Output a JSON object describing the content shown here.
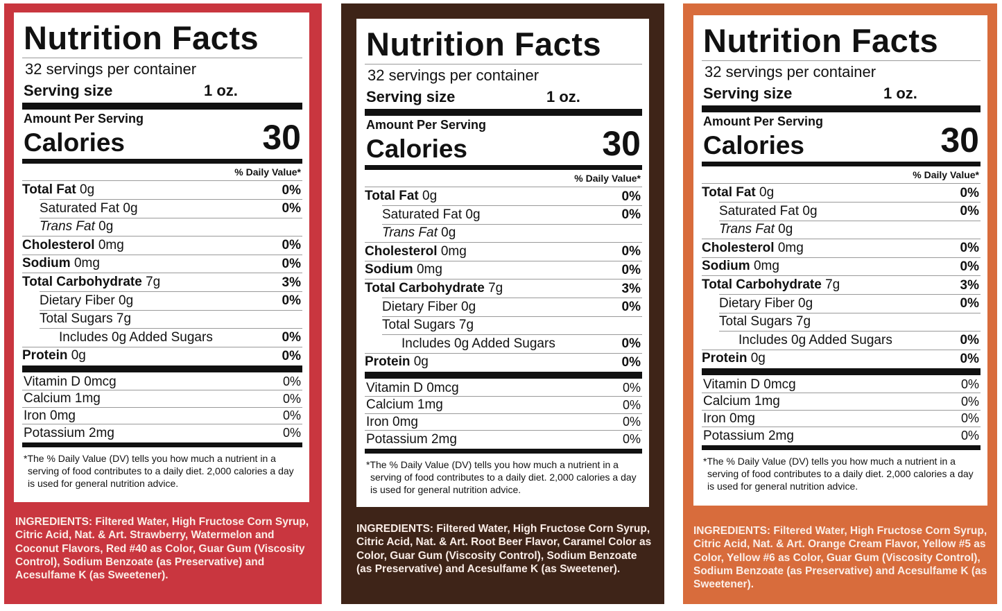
{
  "labels": [
    {
      "title": "Nutrition Facts",
      "servings": "32 servings per container",
      "serving_size_label": "Serving size",
      "serving_size": "1 oz.",
      "amount_per_serving": "Amount Per Serving",
      "calories_label": "Calories",
      "calories": "30",
      "dv_header": "% Daily Value*",
      "nutrients": [
        {
          "name": "Total Fat",
          "amount": "0g",
          "dv": "0%"
        },
        {
          "name": "Saturated Fat",
          "amount": "0g",
          "dv": "0%"
        },
        {
          "name": "Trans Fat",
          "amount": "0g"
        },
        {
          "name": "Cholesterol",
          "amount": "0mg",
          "dv": "0%"
        },
        {
          "name": "Sodium",
          "amount": "0mg",
          "dv": "0%"
        },
        {
          "name": "Total Carbohydrate",
          "amount": "7g",
          "dv": "3%"
        },
        {
          "name": "Dietary Fiber",
          "amount": "0g",
          "dv": "0%"
        },
        {
          "name": "Total Sugars",
          "amount": "7g"
        },
        {
          "name": "Includes 0g Added Sugars",
          "dv": "0%"
        },
        {
          "name": "Protein",
          "amount": "0g",
          "dv": "0%"
        }
      ],
      "vitamins": [
        {
          "name": "Vitamin D 0mcg",
          "dv": "0%"
        },
        {
          "name": "Calcium 1mg",
          "dv": "0%"
        },
        {
          "name": "Iron 0mg",
          "dv": "0%"
        },
        {
          "name": "Potassium 2mg",
          "dv": "0%"
        }
      ],
      "footnote": "*The % Daily Value (DV) tells you how much a nutrient in a serving of food contributes to a daily diet. 2,000 calories a day is used for general nutrition advice.",
      "ingredients": "INGREDIENTS: Filtered Water, High Fructose Corn Syrup, Citric Acid, Nat. & Art. Strawberry, Watermelon and Coconut Flavors, Red #40 as Color, Guar Gum (Viscosity Control), Sodium Benzoate (as Preservative) and Acesulfame K (as Sweetener)."
    },
    {
      "title": "Nutrition Facts",
      "servings": "32 servings per container",
      "serving_size_label": "Serving size",
      "serving_size": "1 oz.",
      "amount_per_serving": "Amount Per Serving",
      "calories_label": "Calories",
      "calories": "30",
      "dv_header": "% Daily Value*",
      "nutrients": [
        {
          "name": "Total Fat",
          "amount": "0g",
          "dv": "0%"
        },
        {
          "name": "Saturated Fat",
          "amount": "0g",
          "dv": "0%"
        },
        {
          "name": "Trans Fat",
          "amount": "0g"
        },
        {
          "name": "Cholesterol",
          "amount": "0mg",
          "dv": "0%"
        },
        {
          "name": "Sodium",
          "amount": "0mg",
          "dv": "0%"
        },
        {
          "name": "Total Carbohydrate",
          "amount": "7g",
          "dv": "3%"
        },
        {
          "name": "Dietary Fiber",
          "amount": "0g",
          "dv": "0%"
        },
        {
          "name": "Total Sugars",
          "amount": "7g"
        },
        {
          "name": "Includes 0g Added Sugars",
          "dv": "0%"
        },
        {
          "name": "Protein",
          "amount": "0g",
          "dv": "0%"
        }
      ],
      "vitamins": [
        {
          "name": "Vitamin D 0mcg",
          "dv": "0%"
        },
        {
          "name": "Calcium 1mg",
          "dv": "0%"
        },
        {
          "name": "Iron 0mg",
          "dv": "0%"
        },
        {
          "name": "Potassium 2mg",
          "dv": "0%"
        }
      ],
      "footnote": "*The % Daily Value (DV) tells you how much a nutrient in a serving of food contributes to a daily diet. 2,000 calories a day is used for general nutrition advice.",
      "ingredients": "INGREDIENTS: Filtered Water, High Fructose Corn Syrup, Citric Acid, Nat. & Art. Root Beer Flavor, Caramel Color as Color, Guar Gum (Viscosity Control), Sodium Benzoate (as Preservative) and Acesulfame K (as Sweetener)."
    },
    {
      "title": "Nutrition Facts",
      "servings": "32 servings per container",
      "serving_size_label": "Serving size",
      "serving_size": "1 oz.",
      "amount_per_serving": "Amount Per Serving",
      "calories_label": "Calories",
      "calories": "30",
      "dv_header": "% Daily Value*",
      "nutrients": [
        {
          "name": "Total Fat",
          "amount": "0g",
          "dv": "0%"
        },
        {
          "name": "Saturated Fat",
          "amount": "0g",
          "dv": "0%"
        },
        {
          "name": "Trans Fat",
          "amount": "0g"
        },
        {
          "name": "Cholesterol",
          "amount": "0mg",
          "dv": "0%"
        },
        {
          "name": "Sodium",
          "amount": "0mg",
          "dv": "0%"
        },
        {
          "name": "Total Carbohydrate",
          "amount": "7g",
          "dv": "3%"
        },
        {
          "name": "Dietary Fiber",
          "amount": "0g",
          "dv": "0%"
        },
        {
          "name": "Total Sugars",
          "amount": "7g"
        },
        {
          "name": "Includes 0g Added Sugars",
          "dv": "0%"
        },
        {
          "name": "Protein",
          "amount": "0g",
          "dv": "0%"
        }
      ],
      "vitamins": [
        {
          "name": "Vitamin D 0mcg",
          "dv": "0%"
        },
        {
          "name": "Calcium 1mg",
          "dv": "0%"
        },
        {
          "name": "Iron 0mg",
          "dv": "0%"
        },
        {
          "name": "Potassium 2mg",
          "dv": "0%"
        }
      ],
      "footnote": "*The % Daily Value (DV) tells you how much a nutrient in a serving of food contributes to a daily diet. 2,000 calories a day is used for general nutrition advice.",
      "ingredients": "INGREDIENTS: Filtered Water, High Fructose Corn Syrup, Citric Acid, Nat. & Art. Orange Cream Flavor, Yellow #5 as Color, Yellow #6 as Color, Guar Gum (Viscosity Control), Sodium Benzoate (as Preservative) and Acesulfame K (as Sweetener)."
    }
  ]
}
